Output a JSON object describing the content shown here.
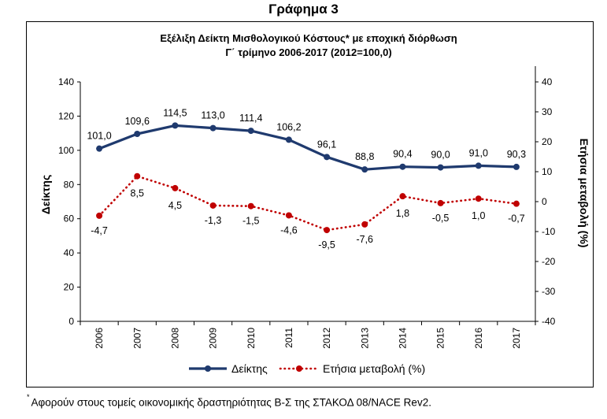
{
  "figure_heading": "Γράφημα 3",
  "footnote": {
    "marker": "*",
    "text": "Αφορούν στους τομείς οικονομικής δραστηριότητας Β-Σ της ΣΤΑΚΟΔ 08/NACE Rev2."
  },
  "colors": {
    "index_series": "#1f3a6e",
    "change_series": "#c00000"
  },
  "chart_data": {
    "type": "line",
    "title": "Εξέλιξη Δείκτη Μισθολογικού Κόστους* με εποχική διόρθωση",
    "subtitle": "Γ΄ τρίμηνο 2006-2017 (2012=100,0)",
    "categories": [
      "2006",
      "2007",
      "2008",
      "2009",
      "2010",
      "2011",
      "2012",
      "2013",
      "2014",
      "2015",
      "2016",
      "2017"
    ],
    "ylabel": "Δείκτης",
    "ylim": [
      0,
      140
    ],
    "yticks": [
      "0",
      "20",
      "40",
      "60",
      "80",
      "100",
      "120",
      "140"
    ],
    "ylabel_right": "Ετήσια μεταβολή (%)",
    "ylim_right": [
      -40,
      40
    ],
    "yticks_right": [
      "-40",
      "-30",
      "-20",
      "-10",
      "0",
      "10",
      "20",
      "30",
      "40"
    ],
    "grid": false,
    "legend_position": "bottom",
    "series": [
      {
        "name": "Δείκτης",
        "axis": "left",
        "style": "solid",
        "values": [
          101.0,
          109.6,
          114.5,
          113.0,
          111.4,
          106.2,
          96.1,
          88.8,
          90.4,
          90.0,
          91.0,
          90.3
        ],
        "labels": [
          "101,0",
          "109,6",
          "114,5",
          "113,0",
          "111,4",
          "106,2",
          "96,1",
          "88,8",
          "90,4",
          "90,0",
          "91,0",
          "90,3"
        ]
      },
      {
        "name": "Ετήσια μεταβολή (%)",
        "axis": "right",
        "style": "dotted",
        "values": [
          -4.7,
          8.5,
          4.5,
          -1.3,
          -1.5,
          -4.6,
          -9.5,
          -7.6,
          1.8,
          -0.5,
          1.0,
          -0.7
        ],
        "labels": [
          "-4,7",
          "8,5",
          "4,5",
          "-1,3",
          "-1,5",
          "-4,6",
          "-9,5",
          "-7,6",
          "1,8",
          "-0,5",
          "1,0",
          "-0,7"
        ]
      }
    ]
  }
}
